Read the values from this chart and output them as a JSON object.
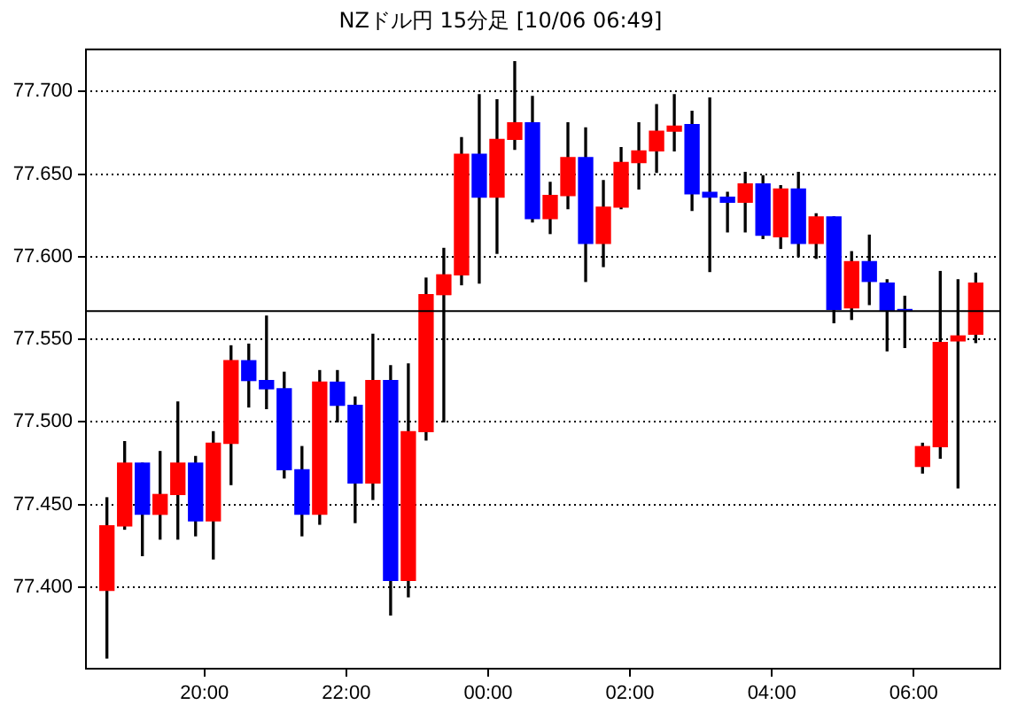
{
  "chart_data": {
    "type": "candlestick",
    "title": "NZドル円 15分足 [10/06 06:49]",
    "x": [
      "--10-05T18:37:30",
      "--10-05T18:52:30",
      "--10-05T19:07:30",
      "--10-05T19:22:30",
      "--10-05T19:37:30",
      "--10-05T19:52:30",
      "--10-05T20:07:30",
      "--10-05T20:22:30",
      "--10-05T20:37:30",
      "--10-05T20:52:30",
      "--10-05T21:07:30",
      "--10-05T21:22:30",
      "--10-05T21:37:30",
      "--10-05T21:52:30",
      "--10-05T22:07:30",
      "--10-05T22:22:30",
      "--10-05T22:37:30",
      "--10-05T22:52:30",
      "--10-05T23:07:30",
      "--10-05T23:22:30",
      "--10-05T23:37:30",
      "--10-05T23:52:30",
      "--10-06T00:07:30",
      "--10-06T00:22:30",
      "--10-06T00:37:30",
      "--10-06T00:52:30",
      "--10-06T01:07:30",
      "--10-06T01:22:30",
      "--10-06T01:37:30",
      "--10-06T01:52:30",
      "--10-06T02:07:30",
      "--10-06T02:22:30",
      "--10-06T02:37:30",
      "--10-06T02:52:30",
      "--10-06T03:07:30",
      "--10-06T03:22:30",
      "--10-06T03:37:30",
      "--10-06T03:52:30",
      "--10-06T04:07:30",
      "--10-06T04:22:30",
      "--10-06T04:37:30",
      "--10-06T04:52:30",
      "--10-06T05:07:30",
      "--10-06T05:22:30",
      "--10-06T05:37:30",
      "--10-06T05:52:30",
      "--10-06T06:07:30",
      "--10-06T06:22:30",
      "--10-06T06:37:30",
      "--10-06T06:52:30"
    ],
    "ohlc": [
      [
        77.398,
        77.454,
        77.357,
        77.437
      ],
      [
        77.437,
        77.488,
        77.435,
        77.475
      ],
      [
        77.475,
        77.475,
        77.419,
        77.444
      ],
      [
        77.444,
        77.482,
        77.429,
        77.456
      ],
      [
        77.456,
        77.512,
        77.429,
        77.475
      ],
      [
        77.475,
        77.479,
        77.431,
        77.44
      ],
      [
        77.44,
        77.494,
        77.417,
        77.487
      ],
      [
        77.487,
        77.546,
        77.462,
        77.537
      ],
      [
        77.537,
        77.547,
        77.509,
        77.525
      ],
      [
        77.525,
        77.564,
        77.508,
        77.52
      ],
      [
        77.52,
        77.53,
        77.466,
        77.471
      ],
      [
        77.471,
        77.485,
        77.431,
        77.444
      ],
      [
        77.444,
        77.531,
        77.438,
        77.524
      ],
      [
        77.524,
        77.531,
        77.5,
        77.51
      ],
      [
        77.51,
        77.515,
        77.439,
        77.463
      ],
      [
        77.463,
        77.553,
        77.453,
        77.525
      ],
      [
        77.525,
        77.534,
        77.383,
        77.404
      ],
      [
        77.404,
        77.535,
        77.394,
        77.494
      ],
      [
        77.494,
        77.587,
        77.489,
        77.577
      ],
      [
        77.577,
        77.605,
        77.5,
        77.589
      ],
      [
        77.589,
        77.672,
        77.583,
        77.662
      ],
      [
        77.662,
        77.698,
        77.584,
        77.636
      ],
      [
        77.636,
        77.695,
        77.602,
        77.671
      ],
      [
        77.671,
        77.718,
        77.665,
        77.681
      ],
      [
        77.681,
        77.697,
        77.621,
        77.623
      ],
      [
        77.623,
        77.645,
        77.614,
        77.637
      ],
      [
        77.637,
        77.681,
        77.629,
        77.66
      ],
      [
        77.66,
        77.678,
        77.585,
        77.608
      ],
      [
        77.608,
        77.646,
        77.594,
        77.63
      ],
      [
        77.63,
        77.666,
        77.629,
        77.657
      ],
      [
        77.657,
        77.681,
        77.641,
        77.664
      ],
      [
        77.664,
        77.692,
        77.651,
        77.676
      ],
      [
        77.676,
        77.698,
        77.664,
        77.679
      ],
      [
        77.68,
        77.688,
        77.628,
        77.638
      ],
      [
        77.639,
        77.696,
        77.591,
        77.636
      ],
      [
        77.636,
        77.639,
        77.615,
        77.633
      ],
      [
        77.633,
        77.651,
        77.615,
        77.644
      ],
      [
        77.644,
        77.649,
        77.611,
        77.613
      ],
      [
        77.612,
        77.643,
        77.605,
        77.641
      ],
      [
        77.641,
        77.651,
        77.6,
        77.608
      ],
      [
        77.608,
        77.626,
        77.599,
        77.624
      ],
      [
        77.624,
        77.624,
        77.56,
        77.568
      ],
      [
        77.569,
        77.603,
        77.562,
        77.597
      ],
      [
        77.597,
        77.613,
        77.571,
        77.585
      ],
      [
        77.584,
        77.586,
        77.543,
        77.567
      ],
      [
        77.568,
        77.576,
        77.545,
        77.567
      ],
      [
        77.473,
        77.487,
        77.469,
        77.485
      ],
      [
        77.485,
        77.591,
        77.478,
        77.548
      ],
      [
        77.549,
        77.586,
        77.46,
        77.552
      ],
      [
        77.553,
        77.59,
        77.548,
        77.584
      ]
    ],
    "colors": [
      "#ff0000",
      "#ff0000",
      "#0000ff",
      "#ff0000",
      "#ff0000",
      "#0000ff",
      "#ff0000",
      "#ff0000",
      "#0000ff",
      "#0000ff",
      "#0000ff",
      "#0000ff",
      "#ff0000",
      "#0000ff",
      "#0000ff",
      "#ff0000",
      "#0000ff",
      "#ff0000",
      "#ff0000",
      "#ff0000",
      "#ff0000",
      "#0000ff",
      "#ff0000",
      "#ff0000",
      "#0000ff",
      "#ff0000",
      "#ff0000",
      "#0000ff",
      "#ff0000",
      "#ff0000",
      "#ff0000",
      "#ff0000",
      "#ff0000",
      "#0000ff",
      "#0000ff",
      "#0000ff",
      "#ff0000",
      "#0000ff",
      "#ff0000",
      "#0000ff",
      "#ff0000",
      "#0000ff",
      "#ff0000",
      "#0000ff",
      "#0000ff",
      "#0000ff",
      "#ff0000",
      "#ff0000",
      "#ff0000",
      "#ff0000"
    ],
    "xlim": [
      "--10-05T18:19",
      "--10-06T07:14"
    ],
    "xticks": [
      {
        "value": "--10-05T20:00",
        "label": "20:00"
      },
      {
        "value": "--10-05T22:00",
        "label": "22:00"
      },
      {
        "value": "--10-06T00:00",
        "label": "00:00"
      },
      {
        "value": "--10-06T02:00",
        "label": "02:00"
      },
      {
        "value": "--10-06T04:00",
        "label": "04:00"
      },
      {
        "value": "--10-06T06:00",
        "label": "06:00"
      }
    ],
    "ylim": [
      77.35,
      77.726
    ],
    "yticks": [
      {
        "value": 77.4,
        "label": "77.400"
      },
      {
        "value": 77.45,
        "label": "77.450"
      },
      {
        "value": 77.5,
        "label": "77.500"
      },
      {
        "value": 77.55,
        "label": "77.550"
      },
      {
        "value": 77.6,
        "label": "77.600"
      },
      {
        "value": 77.65,
        "label": "77.650"
      },
      {
        "value": 77.7,
        "label": "77.700"
      }
    ],
    "ref_lines": [
      {
        "axis": "y",
        "value": 77.567,
        "color": "#000000"
      }
    ],
    "grid": "y",
    "legend": false
  }
}
